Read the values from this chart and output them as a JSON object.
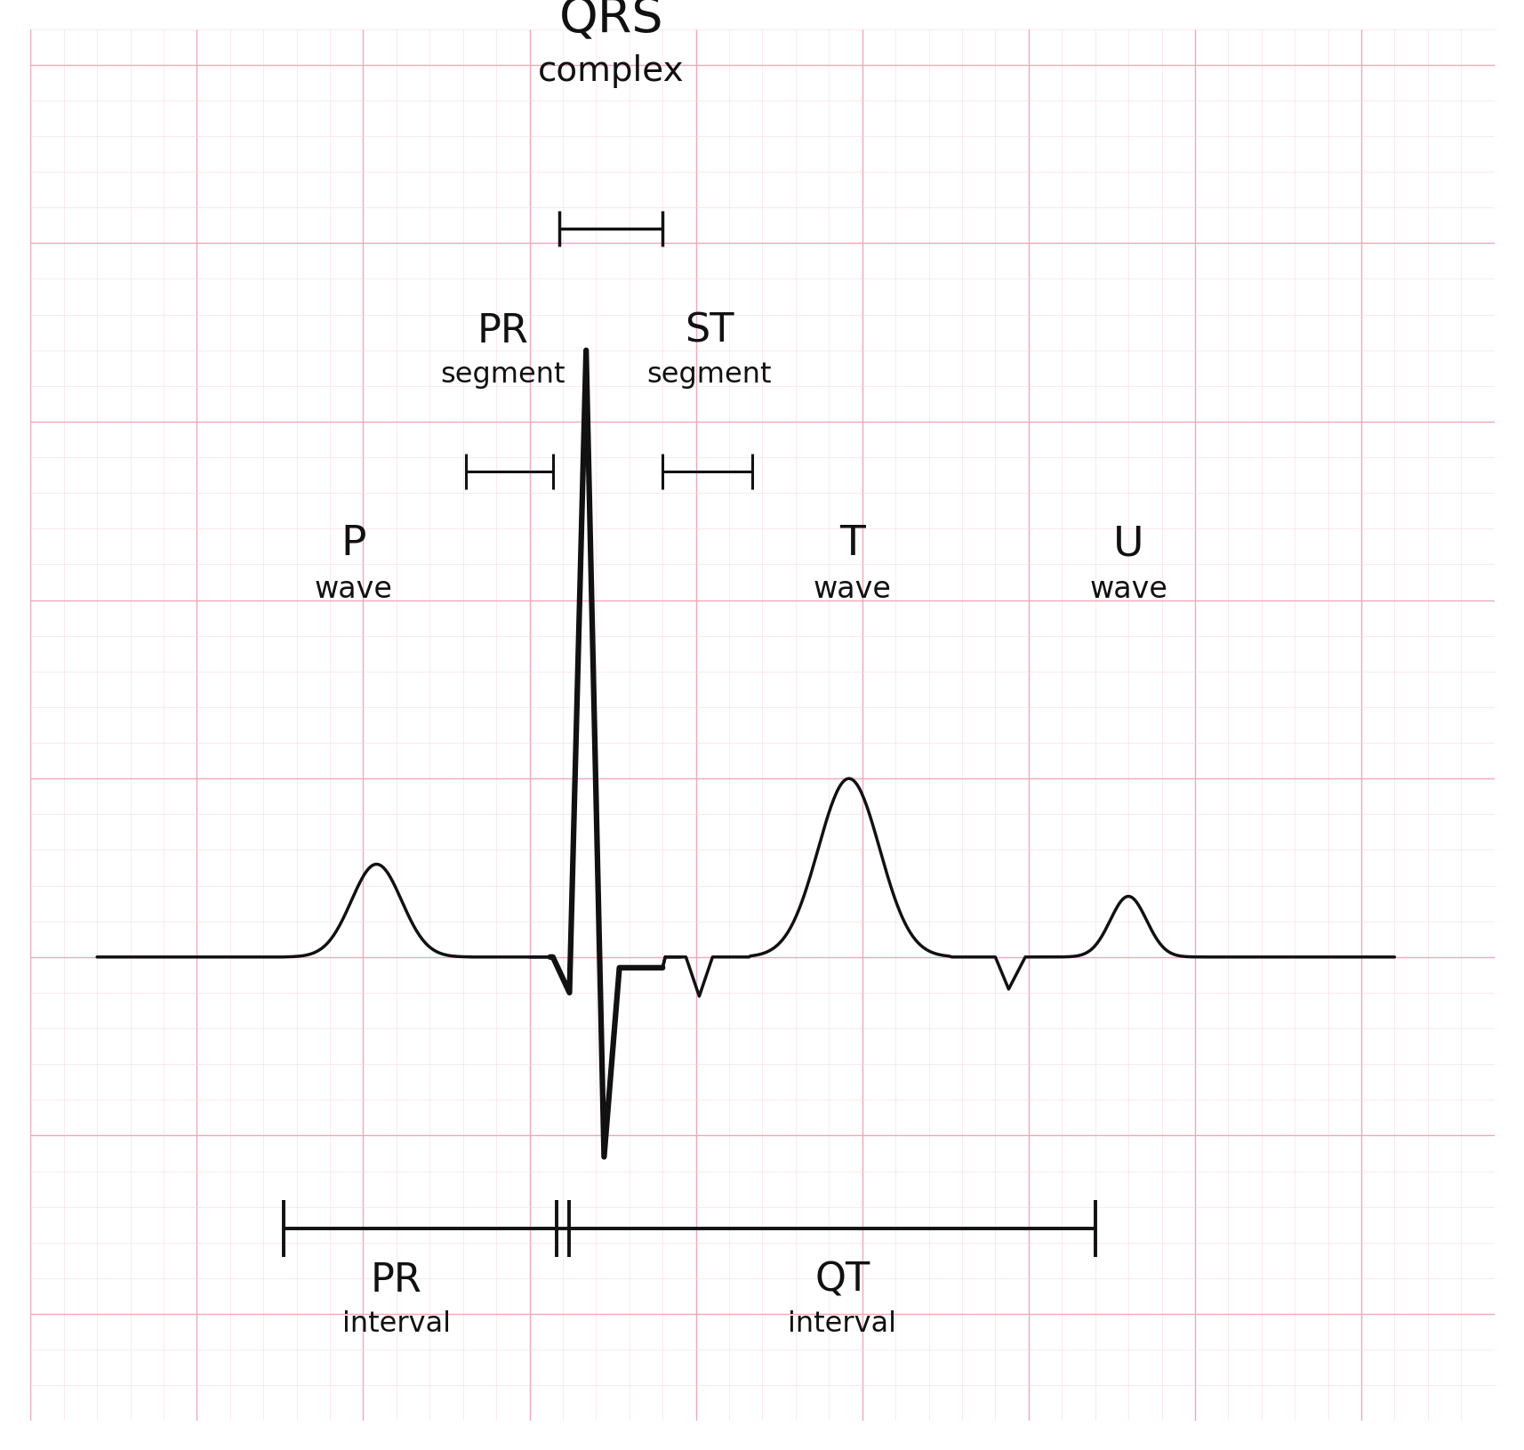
{
  "bg_color": "#ffffff",
  "grid_major_color": "#f0a8b8",
  "grid_minor_color": "#fad8e0",
  "ecg_color": "#111111",
  "text_color": "#111111",
  "ecg_lw_thin": 2.5,
  "ecg_lw_thick": 4.5,
  "ann_lw": 2.2,
  "figsize": [
    17.15,
    16.3
  ],
  "dpi": 100,
  "xlim": [
    0,
    22
  ],
  "ylim": [
    -6.5,
    13
  ],
  "grid_minor_step": 0.5,
  "grid_major_step": 2.5
}
